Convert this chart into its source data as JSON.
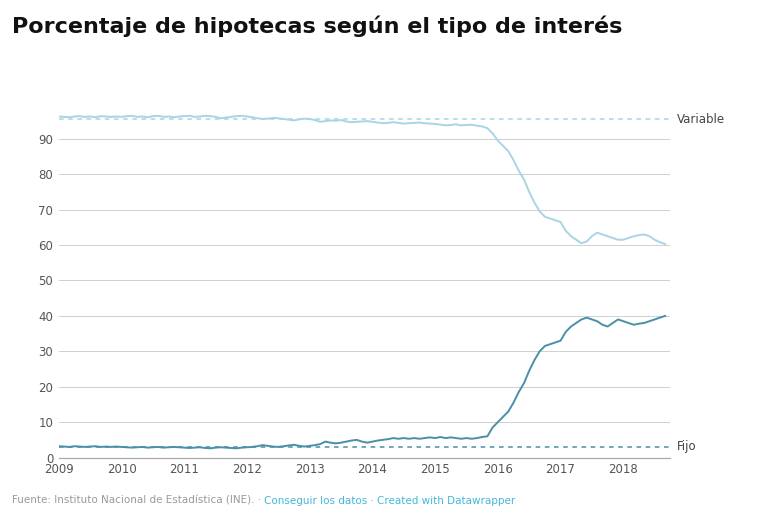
{
  "title": "Porcentaje de hipotecas según el tipo de interés",
  "title_fontsize": 16,
  "ylim": [
    0,
    100
  ],
  "xlim_start": 2009.0,
  "xlim_end": 2018.75,
  "background_color": "#ffffff",
  "grid_color": "#d0d0d0",
  "variable_color": "#a8d4e6",
  "fijo_color": "#4a8fa8",
  "dotted_line_variable": 95.5,
  "dotted_line_fijo": 3.0,
  "label_variable": "Variable",
  "label_fijo": "Fijo",
  "footer_gray": "Fuente: Instituto Nacional de Estadística (INE). · ",
  "footer_blue1": "Conseguir los datos",
  "footer_sep": " · ",
  "footer_blue2": "Created with Datawrapper",
  "footer_color_gray": "#999999",
  "footer_color_blue": "#45b8d8",
  "yticks": [
    0,
    10,
    20,
    30,
    40,
    50,
    60,
    70,
    80,
    90
  ],
  "xtick_years": [
    2009,
    2010,
    2011,
    2012,
    2013,
    2014,
    2015,
    2016,
    2017,
    2018
  ],
  "variable_data": [
    [
      2009.0,
      96.3
    ],
    [
      2009.083,
      96.2
    ],
    [
      2009.167,
      96.1
    ],
    [
      2009.25,
      96.3
    ],
    [
      2009.333,
      96.4
    ],
    [
      2009.417,
      96.2
    ],
    [
      2009.5,
      96.3
    ],
    [
      2009.583,
      96.1
    ],
    [
      2009.667,
      96.4
    ],
    [
      2009.75,
      96.3
    ],
    [
      2009.833,
      96.2
    ],
    [
      2009.917,
      96.3
    ],
    [
      2010.0,
      96.2
    ],
    [
      2010.083,
      96.4
    ],
    [
      2010.167,
      96.5
    ],
    [
      2010.25,
      96.2
    ],
    [
      2010.333,
      96.3
    ],
    [
      2010.417,
      96.1
    ],
    [
      2010.5,
      96.4
    ],
    [
      2010.583,
      96.5
    ],
    [
      2010.667,
      96.2
    ],
    [
      2010.75,
      96.3
    ],
    [
      2010.833,
      96.1
    ],
    [
      2010.917,
      96.3
    ],
    [
      2011.0,
      96.4
    ],
    [
      2011.083,
      96.5
    ],
    [
      2011.167,
      96.2
    ],
    [
      2011.25,
      96.3
    ],
    [
      2011.333,
      96.5
    ],
    [
      2011.417,
      96.4
    ],
    [
      2011.5,
      96.2
    ],
    [
      2011.583,
      95.8
    ],
    [
      2011.667,
      96.0
    ],
    [
      2011.75,
      96.2
    ],
    [
      2011.833,
      96.4
    ],
    [
      2011.917,
      96.5
    ],
    [
      2012.0,
      96.3
    ],
    [
      2012.083,
      96.1
    ],
    [
      2012.167,
      95.8
    ],
    [
      2012.25,
      95.6
    ],
    [
      2012.333,
      95.7
    ],
    [
      2012.417,
      95.9
    ],
    [
      2012.5,
      95.8
    ],
    [
      2012.583,
      95.6
    ],
    [
      2012.667,
      95.4
    ],
    [
      2012.75,
      95.2
    ],
    [
      2012.833,
      95.5
    ],
    [
      2012.917,
      95.7
    ],
    [
      2013.0,
      95.6
    ],
    [
      2013.083,
      95.3
    ],
    [
      2013.167,
      94.8
    ],
    [
      2013.25,
      95.0
    ],
    [
      2013.333,
      95.2
    ],
    [
      2013.417,
      95.1
    ],
    [
      2013.5,
      95.3
    ],
    [
      2013.583,
      94.9
    ],
    [
      2013.667,
      94.7
    ],
    [
      2013.75,
      94.8
    ],
    [
      2013.833,
      94.9
    ],
    [
      2013.917,
      95.0
    ],
    [
      2014.0,
      94.8
    ],
    [
      2014.083,
      94.6
    ],
    [
      2014.167,
      94.4
    ],
    [
      2014.25,
      94.5
    ],
    [
      2014.333,
      94.7
    ],
    [
      2014.417,
      94.5
    ],
    [
      2014.5,
      94.3
    ],
    [
      2014.583,
      94.4
    ],
    [
      2014.667,
      94.5
    ],
    [
      2014.75,
      94.6
    ],
    [
      2014.833,
      94.4
    ],
    [
      2014.917,
      94.3
    ],
    [
      2015.0,
      94.2
    ],
    [
      2015.083,
      94.0
    ],
    [
      2015.167,
      93.8
    ],
    [
      2015.25,
      93.9
    ],
    [
      2015.333,
      94.1
    ],
    [
      2015.417,
      93.8
    ],
    [
      2015.5,
      93.9
    ],
    [
      2015.583,
      94.0
    ],
    [
      2015.667,
      93.7
    ],
    [
      2015.75,
      93.5
    ],
    [
      2015.833,
      93.0
    ],
    [
      2015.917,
      91.5
    ],
    [
      2016.0,
      89.5
    ],
    [
      2016.083,
      88.0
    ],
    [
      2016.167,
      86.5
    ],
    [
      2016.25,
      84.0
    ],
    [
      2016.333,
      81.0
    ],
    [
      2016.417,
      78.5
    ],
    [
      2016.5,
      75.0
    ],
    [
      2016.583,
      72.0
    ],
    [
      2016.667,
      69.5
    ],
    [
      2016.75,
      68.0
    ],
    [
      2016.833,
      67.5
    ],
    [
      2016.917,
      67.0
    ],
    [
      2017.0,
      66.5
    ],
    [
      2017.083,
      64.0
    ],
    [
      2017.167,
      62.5
    ],
    [
      2017.25,
      61.5
    ],
    [
      2017.333,
      60.5
    ],
    [
      2017.417,
      61.0
    ],
    [
      2017.5,
      62.5
    ],
    [
      2017.583,
      63.5
    ],
    [
      2017.667,
      63.0
    ],
    [
      2017.75,
      62.5
    ],
    [
      2017.833,
      62.0
    ],
    [
      2017.917,
      61.5
    ],
    [
      2018.0,
      61.5
    ],
    [
      2018.083,
      62.0
    ],
    [
      2018.167,
      62.5
    ],
    [
      2018.25,
      62.8
    ],
    [
      2018.333,
      63.0
    ],
    [
      2018.417,
      62.5
    ],
    [
      2018.5,
      61.5
    ],
    [
      2018.583,
      60.8
    ],
    [
      2018.667,
      60.3
    ]
  ],
  "fijo_data": [
    [
      2009.0,
      3.2
    ],
    [
      2009.083,
      3.1
    ],
    [
      2009.167,
      3.0
    ],
    [
      2009.25,
      3.2
    ],
    [
      2009.333,
      3.1
    ],
    [
      2009.417,
      3.0
    ],
    [
      2009.5,
      3.1
    ],
    [
      2009.583,
      3.2
    ],
    [
      2009.667,
      3.0
    ],
    [
      2009.75,
      3.1
    ],
    [
      2009.833,
      3.0
    ],
    [
      2009.917,
      3.1
    ],
    [
      2010.0,
      3.0
    ],
    [
      2010.083,
      2.9
    ],
    [
      2010.167,
      2.8
    ],
    [
      2010.25,
      2.9
    ],
    [
      2010.333,
      3.0
    ],
    [
      2010.417,
      2.8
    ],
    [
      2010.5,
      2.9
    ],
    [
      2010.583,
      3.0
    ],
    [
      2010.667,
      2.8
    ],
    [
      2010.75,
      2.9
    ],
    [
      2010.833,
      3.0
    ],
    [
      2010.917,
      2.9
    ],
    [
      2011.0,
      2.8
    ],
    [
      2011.083,
      2.7
    ],
    [
      2011.167,
      2.8
    ],
    [
      2011.25,
      2.9
    ],
    [
      2011.333,
      2.7
    ],
    [
      2011.417,
      2.6
    ],
    [
      2011.5,
      2.8
    ],
    [
      2011.583,
      2.9
    ],
    [
      2011.667,
      2.8
    ],
    [
      2011.75,
      2.7
    ],
    [
      2011.833,
      2.6
    ],
    [
      2011.917,
      2.8
    ],
    [
      2012.0,
      2.9
    ],
    [
      2012.083,
      3.0
    ],
    [
      2012.167,
      3.2
    ],
    [
      2012.25,
      3.5
    ],
    [
      2012.333,
      3.3
    ],
    [
      2012.417,
      3.1
    ],
    [
      2012.5,
      3.0
    ],
    [
      2012.583,
      3.2
    ],
    [
      2012.667,
      3.4
    ],
    [
      2012.75,
      3.6
    ],
    [
      2012.833,
      3.3
    ],
    [
      2012.917,
      3.1
    ],
    [
      2013.0,
      3.3
    ],
    [
      2013.083,
      3.5
    ],
    [
      2013.167,
      3.8
    ],
    [
      2013.25,
      4.5
    ],
    [
      2013.333,
      4.2
    ],
    [
      2013.417,
      4.0
    ],
    [
      2013.5,
      4.2
    ],
    [
      2013.583,
      4.5
    ],
    [
      2013.667,
      4.8
    ],
    [
      2013.75,
      5.0
    ],
    [
      2013.833,
      4.5
    ],
    [
      2013.917,
      4.2
    ],
    [
      2014.0,
      4.5
    ],
    [
      2014.083,
      4.8
    ],
    [
      2014.167,
      5.0
    ],
    [
      2014.25,
      5.2
    ],
    [
      2014.333,
      5.5
    ],
    [
      2014.417,
      5.3
    ],
    [
      2014.5,
      5.5
    ],
    [
      2014.583,
      5.3
    ],
    [
      2014.667,
      5.5
    ],
    [
      2014.75,
      5.3
    ],
    [
      2014.833,
      5.5
    ],
    [
      2014.917,
      5.7
    ],
    [
      2015.0,
      5.5
    ],
    [
      2015.083,
      5.8
    ],
    [
      2015.167,
      5.5
    ],
    [
      2015.25,
      5.7
    ],
    [
      2015.333,
      5.5
    ],
    [
      2015.417,
      5.3
    ],
    [
      2015.5,
      5.5
    ],
    [
      2015.583,
      5.3
    ],
    [
      2015.667,
      5.5
    ],
    [
      2015.75,
      5.8
    ],
    [
      2015.833,
      6.0
    ],
    [
      2015.917,
      8.5
    ],
    [
      2016.0,
      10.0
    ],
    [
      2016.083,
      11.5
    ],
    [
      2016.167,
      13.0
    ],
    [
      2016.25,
      15.5
    ],
    [
      2016.333,
      18.5
    ],
    [
      2016.417,
      21.0
    ],
    [
      2016.5,
      24.5
    ],
    [
      2016.583,
      27.5
    ],
    [
      2016.667,
      30.0
    ],
    [
      2016.75,
      31.5
    ],
    [
      2016.833,
      32.0
    ],
    [
      2016.917,
      32.5
    ],
    [
      2017.0,
      33.0
    ],
    [
      2017.083,
      35.5
    ],
    [
      2017.167,
      37.0
    ],
    [
      2017.25,
      38.0
    ],
    [
      2017.333,
      39.0
    ],
    [
      2017.417,
      39.5
    ],
    [
      2017.5,
      39.0
    ],
    [
      2017.583,
      38.5
    ],
    [
      2017.667,
      37.5
    ],
    [
      2017.75,
      37.0
    ],
    [
      2017.833,
      38.0
    ],
    [
      2017.917,
      39.0
    ],
    [
      2018.0,
      38.5
    ],
    [
      2018.083,
      38.0
    ],
    [
      2018.167,
      37.5
    ],
    [
      2018.25,
      37.8
    ],
    [
      2018.333,
      38.0
    ],
    [
      2018.417,
      38.5
    ],
    [
      2018.5,
      39.0
    ],
    [
      2018.583,
      39.5
    ],
    [
      2018.667,
      40.0
    ]
  ]
}
